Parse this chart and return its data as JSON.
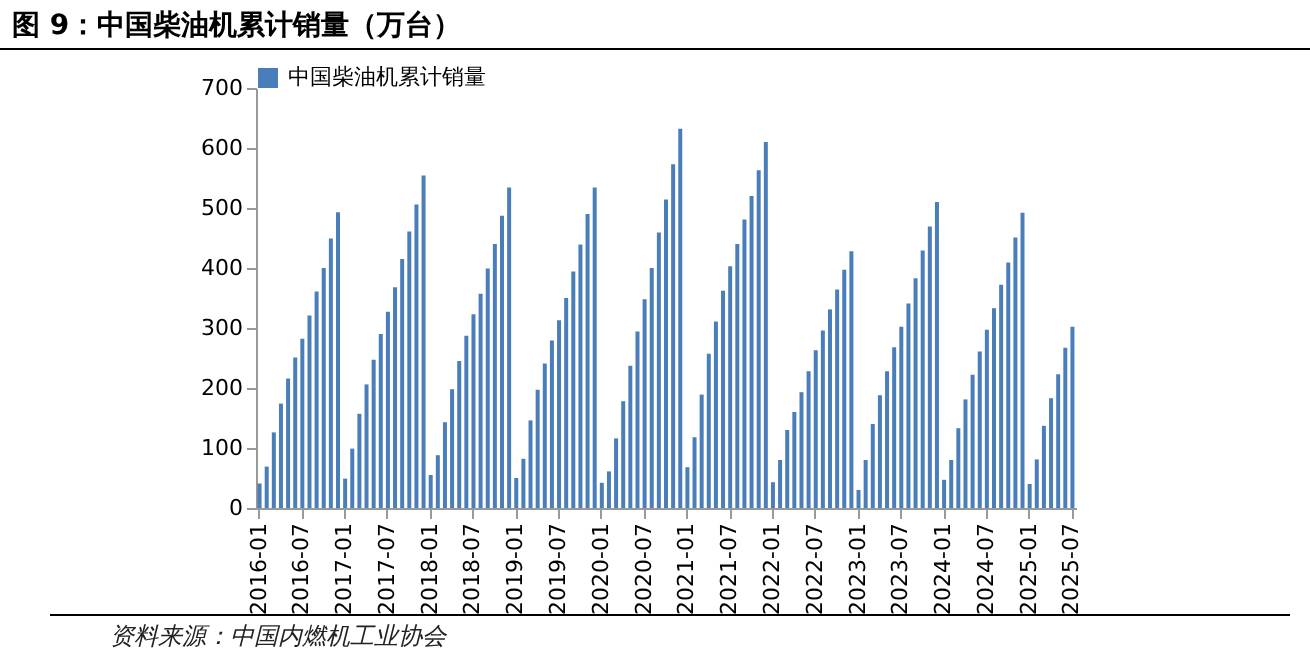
{
  "chart_data": {
    "type": "bar",
    "title": "图 9：中国柴油机累计销量（万台）",
    "categories": [
      "2016-01",
      null,
      null,
      null,
      null,
      null,
      "2016-07",
      null,
      null,
      null,
      null,
      null,
      "2017-01",
      null,
      null,
      null,
      null,
      null,
      "2017-07",
      null,
      null,
      null,
      null,
      null,
      "2018-01",
      null,
      null,
      null,
      null,
      null,
      "2018-07",
      null,
      null,
      null,
      null,
      null,
      "2019-01",
      null,
      null,
      null,
      null,
      null,
      "2019-07",
      null,
      null,
      null,
      null,
      null,
      "2020-01",
      null,
      null,
      null,
      null,
      null,
      "2020-07",
      null,
      null,
      null,
      null,
      null,
      "2021-01",
      null,
      null,
      null,
      null,
      null,
      "2021-07",
      null,
      null,
      null,
      null,
      null,
      "2022-01",
      null,
      null,
      null,
      null,
      null,
      "2022-07",
      null,
      null,
      null,
      null,
      null,
      "2023-01",
      null,
      null,
      null,
      null,
      null,
      "2023-07",
      null,
      null,
      null,
      null,
      null,
      "2024-01",
      null,
      null,
      null,
      null,
      null,
      "2024-07",
      null,
      null,
      null,
      null,
      null,
      "2025-01",
      null,
      null,
      null,
      null,
      null,
      "2025-07"
    ],
    "series": [
      {
        "name": "中国柴油机累计销量",
        "color": "#4a7ebb",
        "values": [
          41,
          69,
          126,
          174,
          216,
          251,
          282,
          321,
          361,
          400,
          449,
          493,
          49,
          99,
          157,
          206,
          247,
          290,
          327,
          368,
          415,
          461,
          506,
          554,
          55,
          88,
          143,
          198,
          245,
          287,
          323,
          357,
          399,
          440,
          487,
          534,
          50,
          82,
          146,
          197,
          241,
          279,
          313,
          350,
          394,
          439,
          490,
          534,
          42,
          61,
          116,
          178,
          237,
          294,
          348,
          400,
          459,
          514,
          573,
          632,
          68,
          118,
          189,
          257,
          311,
          362,
          403,
          440,
          481,
          520,
          563,
          610,
          43,
          80,
          130,
          160,
          193,
          228,
          263,
          296,
          331,
          364,
          397,
          428,
          30,
          80,
          140,
          188,
          228,
          268,
          302,
          341,
          383,
          429,
          469,
          510,
          47,
          80,
          133,
          181,
          222,
          261,
          297,
          333,
          372,
          409,
          451,
          492,
          40,
          81,
          137,
          183,
          223,
          267,
          302
        ]
      }
    ],
    "ylim": [
      0,
      700
    ],
    "yticks": [
      0,
      100,
      200,
      300,
      400,
      500,
      600,
      700
    ],
    "grid": false,
    "legend": "top",
    "annotations": [
      "资料来源：中国内燃机工业协会"
    ]
  }
}
